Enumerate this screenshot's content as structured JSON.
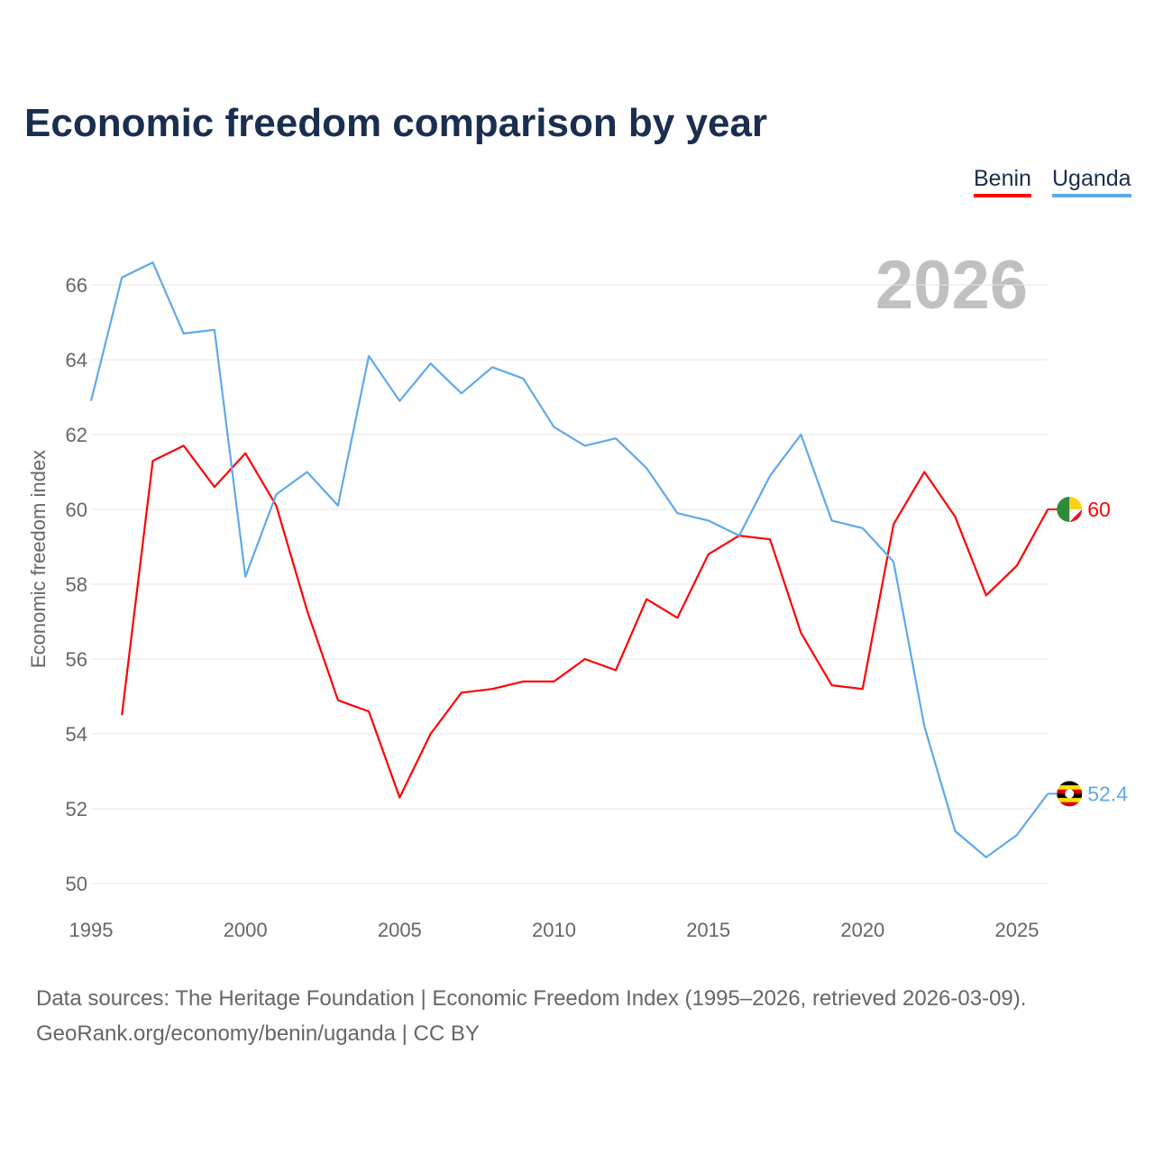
{
  "chart_data": {
    "type": "line",
    "title": "Economic freedom comparison by year",
    "xlabel": "",
    "ylabel": "Economic freedom index",
    "watermark_year": "2026",
    "xlim": [
      1995,
      2026
    ],
    "ylim": [
      50,
      67
    ],
    "x_ticks": [
      1995,
      2000,
      2005,
      2010,
      2015,
      2020,
      2025
    ],
    "y_ticks": [
      50,
      52,
      54,
      56,
      58,
      60,
      62,
      64,
      66
    ],
    "grid": true,
    "legend_position": "top-right",
    "series": [
      {
        "name": "Benin",
        "color": "#ff0000",
        "end_label": "60",
        "x": [
          1996,
          1997,
          1998,
          1999,
          2000,
          2001,
          2002,
          2003,
          2004,
          2005,
          2006,
          2007,
          2008,
          2009,
          2010,
          2011,
          2012,
          2013,
          2014,
          2015,
          2016,
          2017,
          2018,
          2019,
          2020,
          2021,
          2022,
          2023,
          2024,
          2025,
          2026
        ],
        "values": [
          54.5,
          61.3,
          61.7,
          60.6,
          61.5,
          60.1,
          57.3,
          54.9,
          54.6,
          52.3,
          54.0,
          55.1,
          55.2,
          55.4,
          55.4,
          56.0,
          55.7,
          57.6,
          57.1,
          58.8,
          59.3,
          59.2,
          56.7,
          55.3,
          55.2,
          59.6,
          61.0,
          59.8,
          57.7,
          58.5,
          60.0
        ]
      },
      {
        "name": "Uganda",
        "color": "#5ea9ec",
        "end_label": "52.4",
        "x": [
          1995,
          1996,
          1997,
          1998,
          1999,
          2000,
          2001,
          2002,
          2003,
          2004,
          2005,
          2006,
          2007,
          2008,
          2009,
          2010,
          2011,
          2012,
          2013,
          2014,
          2015,
          2016,
          2017,
          2018,
          2019,
          2020,
          2021,
          2022,
          2023,
          2024,
          2025,
          2026
        ],
        "values": [
          62.9,
          66.2,
          66.6,
          64.7,
          64.8,
          58.2,
          60.4,
          61.0,
          60.1,
          64.1,
          62.9,
          63.9,
          63.1,
          63.8,
          63.5,
          62.2,
          61.7,
          61.9,
          61.1,
          59.9,
          59.7,
          59.3,
          60.9,
          62.0,
          59.7,
          59.5,
          58.6,
          54.2,
          51.4,
          50.7,
          51.3,
          52.4
        ]
      }
    ]
  },
  "source_line1": "Data sources: The Heritage Foundation | Economic Freedom Index (1995–2026, retrieved 2026-03-09).",
  "source_line2": "GeoRank.org/economy/benin/uganda | CC BY"
}
